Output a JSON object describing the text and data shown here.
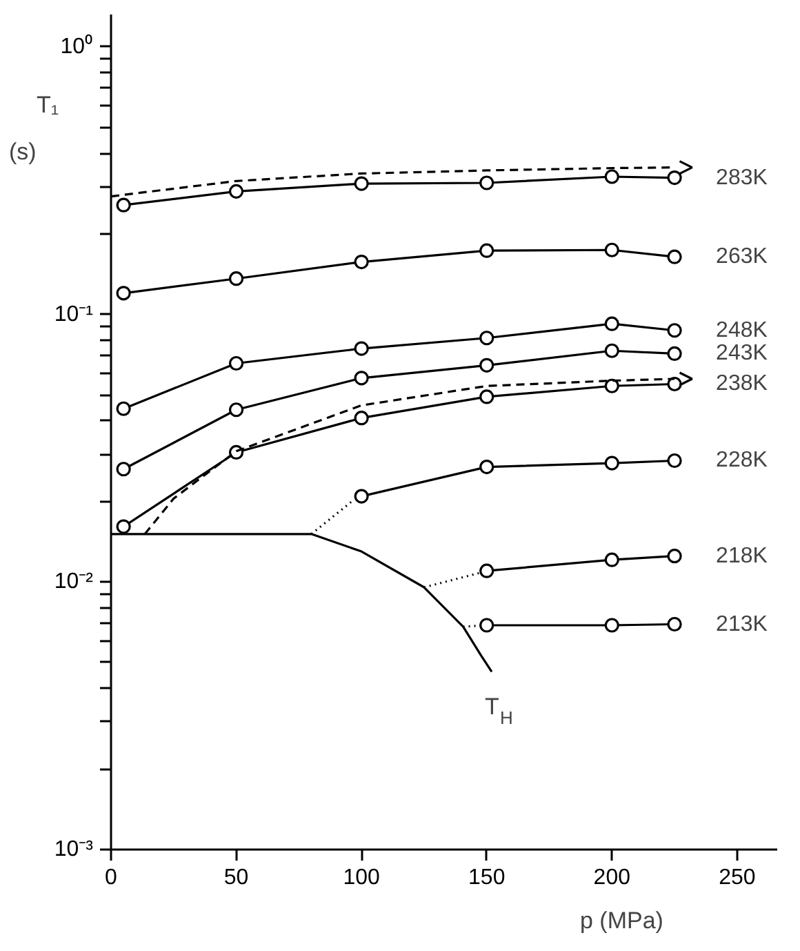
{
  "chart_data": {
    "type": "line",
    "xlabel": "p (MPa)",
    "ylabel": "T₁ (s)",
    "xlim": [
      0,
      266
    ],
    "ylim": [
      0.001,
      1.32
    ],
    "log": "y",
    "grid": false,
    "legend": "right",
    "marker": "circle",
    "xticks": [
      0,
      50,
      100,
      150,
      200,
      250
    ],
    "yticks": [
      {
        "value": 0.001,
        "label": "10⁻³"
      },
      {
        "value": 0.002,
        "label": null
      },
      {
        "value": 0.003,
        "label": null
      },
      {
        "value": 0.004,
        "label": null
      },
      {
        "value": 0.005,
        "label": null
      },
      {
        "value": 0.006,
        "label": null
      },
      {
        "value": 0.007,
        "label": null
      },
      {
        "value": 0.008,
        "label": null
      },
      {
        "value": 0.009,
        "label": null
      },
      {
        "value": 0.01,
        "label": "10⁻²"
      },
      {
        "value": 0.02,
        "label": null
      },
      {
        "value": 0.03,
        "label": null
      },
      {
        "value": 0.04,
        "label": null
      },
      {
        "value": 0.05,
        "label": null
      },
      {
        "value": 0.06,
        "label": null
      },
      {
        "value": 0.07,
        "label": null
      },
      {
        "value": 0.08,
        "label": null
      },
      {
        "value": 0.09,
        "label": null
      },
      {
        "value": 0.1,
        "label": "10⁻¹"
      },
      {
        "value": 0.2,
        "label": null
      },
      {
        "value": 0.3,
        "label": null
      },
      {
        "value": 0.4,
        "label": null
      },
      {
        "value": 0.5,
        "label": null
      },
      {
        "value": 0.6,
        "label": null
      },
      {
        "value": 0.7,
        "label": null
      },
      {
        "value": 0.8,
        "label": null
      },
      {
        "value": 0.9,
        "label": null
      },
      {
        "value": 1,
        "label": "10⁰"
      }
    ],
    "series": [
      {
        "name": "283K",
        "color": "#000000",
        "x": [
          5,
          50,
          100,
          150,
          200,
          225
        ],
        "values": [
          0.256,
          0.288,
          0.308,
          0.31,
          0.327,
          0.324
        ]
      },
      {
        "color": "#000000",
        "line_style": "dashed",
        "marker": "none",
        "x": [
          0,
          50,
          100,
          150,
          200,
          225
        ],
        "values": [
          0.276,
          0.315,
          0.336,
          0.345,
          0.352,
          0.354
        ]
      },
      {
        "name": "263K",
        "color": "#000000",
        "x": [
          5,
          50,
          100,
          150,
          200,
          225
        ],
        "values": [
          0.12,
          0.136,
          0.157,
          0.173,
          0.174,
          0.164
        ]
      },
      {
        "name": "248K",
        "color": "#000000",
        "x": [
          5,
          50,
          100,
          150,
          200,
          225
        ],
        "values": [
          0.0444,
          0.0656,
          0.0745,
          0.0816,
          0.0922,
          0.0871
        ]
      },
      {
        "name": "243K",
        "color": "#000000",
        "x": [
          5,
          50,
          100,
          150,
          200,
          225
        ],
        "values": [
          0.0264,
          0.044,
          0.0578,
          0.0645,
          0.0731,
          0.0713
        ]
      },
      {
        "name": "238K",
        "color": "#000000",
        "x": [
          5,
          50,
          100,
          150,
          200,
          225
        ],
        "values": [
          0.0161,
          0.0305,
          0.041,
          0.0492,
          0.054,
          0.0549
        ]
      },
      {
        "color": "#000000",
        "line_style": "dashed",
        "marker": "none",
        "x": [
          13.5,
          25,
          50,
          100,
          150,
          200,
          225
        ],
        "values": [
          0.0151,
          0.0205,
          0.0308,
          0.0457,
          0.054,
          0.0565,
          0.0574
        ]
      },
      {
        "color": "#000000",
        "line_style": "dotted",
        "marker": "none",
        "x": [
          80,
          97
        ],
        "values": [
          0.0151,
          0.0203
        ]
      },
      {
        "name": "228K",
        "color": "#000000",
        "x": [
          100,
          150,
          200,
          225
        ],
        "values": [
          0.0209,
          0.0269,
          0.0278,
          0.0284
        ]
      },
      {
        "color": "#000000",
        "line_style": "dotted",
        "marker": "none",
        "x": [
          125,
          147
        ],
        "values": [
          0.00955,
          0.0108
        ]
      },
      {
        "name": "218K",
        "color": "#000000",
        "x": [
          150,
          200,
          225
        ],
        "values": [
          0.011,
          0.0121,
          0.0125
        ]
      },
      {
        "color": "#000000",
        "line_style": "dotted",
        "marker": "none",
        "x": [
          140.6,
          147.5
        ],
        "values": [
          0.0068,
          0.00687
        ]
      },
      {
        "name": "213K",
        "color": "#000000",
        "x": [
          150,
          200,
          225
        ],
        "values": [
          0.00689,
          0.00689,
          0.00695
        ]
      },
      {
        "name": "T$_{H}$",
        "color": "#000000",
        "marker": "none",
        "x": [
          0,
          80,
          100,
          125,
          140.6,
          147.8,
          152
        ],
        "values": [
          0.0151,
          0.0151,
          0.013,
          0.00955,
          0.0068,
          0.0053,
          0.00462
        ]
      }
    ]
  }
}
